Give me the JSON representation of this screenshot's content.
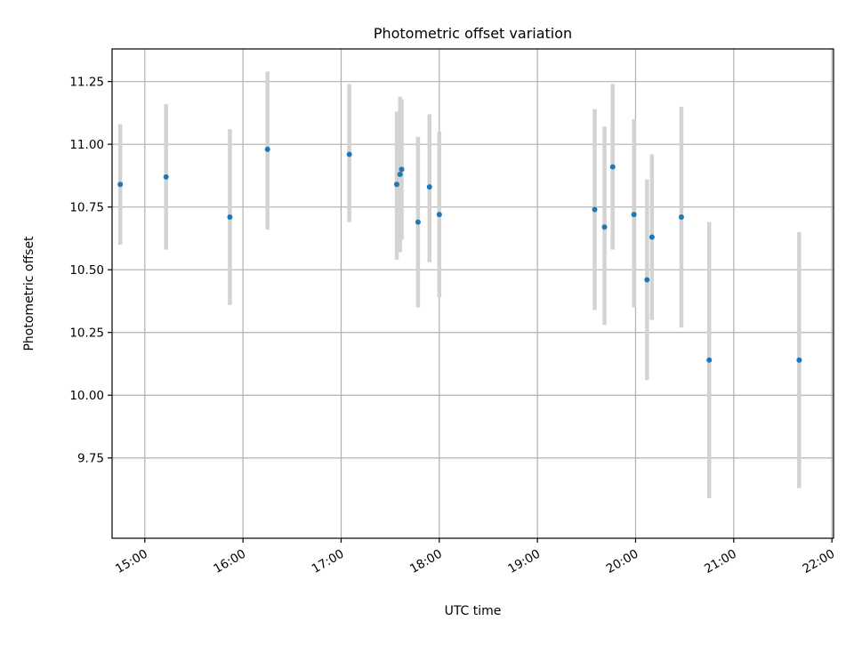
{
  "chart_data": {
    "type": "scatter",
    "title": "Photometric offset variation",
    "xlabel": "UTC time",
    "ylabel": "Photometric offset",
    "x_tick_labels": [
      "15:00",
      "16:00",
      "17:00",
      "18:00",
      "19:00",
      "20:00",
      "21:00",
      "22:00"
    ],
    "y_tick_labels": [
      "9.75",
      "10.00",
      "10.25",
      "10.50",
      "10.75",
      "11.00",
      "11.25"
    ],
    "y_ticks": [
      9.75,
      10.0,
      10.25,
      10.5,
      10.75,
      11.0,
      11.25
    ],
    "xlim": [
      "14:40",
      "22:01"
    ],
    "ylim": [
      9.43,
      11.38
    ],
    "grid": true,
    "series": [
      {
        "marker_color": "#1f77b4",
        "errorbar_color": "#d3d3d3",
        "points": [
          {
            "x": "14:45",
            "y": 10.84,
            "ymin": 10.6,
            "ymax": 11.08
          },
          {
            "x": "15:13",
            "y": 10.87,
            "ymin": 10.58,
            "ymax": 11.16
          },
          {
            "x": "15:52",
            "y": 10.71,
            "ymin": 10.36,
            "ymax": 11.06
          },
          {
            "x": "16:15",
            "y": 10.98,
            "ymin": 10.66,
            "ymax": 11.29
          },
          {
            "x": "17:05",
            "y": 10.96,
            "ymin": 10.69,
            "ymax": 11.24
          },
          {
            "x": "17:34",
            "y": 10.84,
            "ymin": 10.54,
            "ymax": 11.13
          },
          {
            "x": "17:36",
            "y": 10.88,
            "ymin": 10.57,
            "ymax": 11.19
          },
          {
            "x": "17:37",
            "y": 10.9,
            "ymin": 10.62,
            "ymax": 11.18
          },
          {
            "x": "17:47",
            "y": 10.69,
            "ymin": 10.35,
            "ymax": 11.03
          },
          {
            "x": "17:54",
            "y": 10.83,
            "ymin": 10.53,
            "ymax": 11.12
          },
          {
            "x": "18:00",
            "y": 10.72,
            "ymin": 10.39,
            "ymax": 11.05
          },
          {
            "x": "19:35",
            "y": 10.74,
            "ymin": 10.34,
            "ymax": 11.14
          },
          {
            "x": "19:41",
            "y": 10.67,
            "ymin": 10.28,
            "ymax": 11.07
          },
          {
            "x": "19:46",
            "y": 10.91,
            "ymin": 10.58,
            "ymax": 11.24
          },
          {
            "x": "19:59",
            "y": 10.72,
            "ymin": 10.35,
            "ymax": 11.1
          },
          {
            "x": "20:07",
            "y": 10.46,
            "ymin": 10.06,
            "ymax": 10.86
          },
          {
            "x": "20:10",
            "y": 10.63,
            "ymin": 10.3,
            "ymax": 10.96
          },
          {
            "x": "20:28",
            "y": 10.71,
            "ymin": 10.27,
            "ymax": 11.15
          },
          {
            "x": "20:45",
            "y": 10.14,
            "ymin": 9.59,
            "ymax": 10.69
          },
          {
            "x": "21:40",
            "y": 10.14,
            "ymin": 9.63,
            "ymax": 10.65
          }
        ]
      }
    ]
  }
}
